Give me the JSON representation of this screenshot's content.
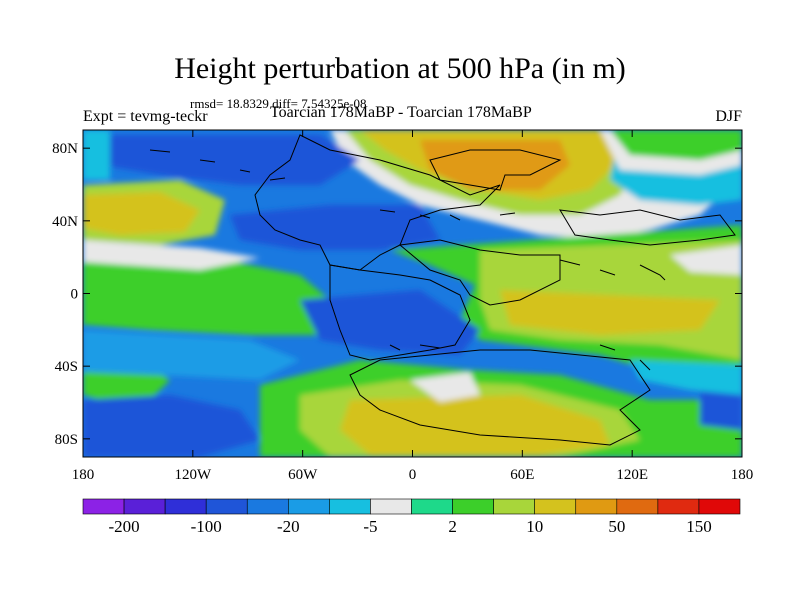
{
  "header": {
    "title": "Height perturbation at 500 hPa (in m)",
    "stats": "rmsd= 18.8329 diff= 7.54325e-08",
    "left_label": "Expt = tevmg-teckr",
    "center_label": "Toarcian 178MaBP - Toarcian 178MaBP",
    "right_label": "DJF"
  },
  "axes": {
    "y_ticks": [
      "80N",
      "40N",
      "0",
      "40S",
      "80S"
    ],
    "y_values": [
      80,
      40,
      0,
      -40,
      -80
    ],
    "x_ticks": [
      "180",
      "120W",
      "60W",
      "0",
      "60E",
      "120E",
      "180"
    ],
    "x_values": [
      -180,
      -120,
      -60,
      0,
      60,
      120,
      180
    ],
    "lon_range": [
      -180,
      180
    ],
    "lat_range": [
      -90,
      90
    ]
  },
  "colorbar": {
    "colors": [
      "#8c22e6",
      "#5a20d8",
      "#2f2fd8",
      "#1f55d8",
      "#1a79e0",
      "#1a9ce6",
      "#17bfe0",
      "#e8e8e8",
      "#1ed98a",
      "#3ccf2a",
      "#a8d63a",
      "#d4c21e",
      "#e09a12",
      "#e06a10",
      "#e02a10",
      "#e00808"
    ],
    "labels": [
      "-200",
      "-100",
      "-20",
      "-5",
      "2",
      "10",
      "50",
      "150"
    ]
  }
}
